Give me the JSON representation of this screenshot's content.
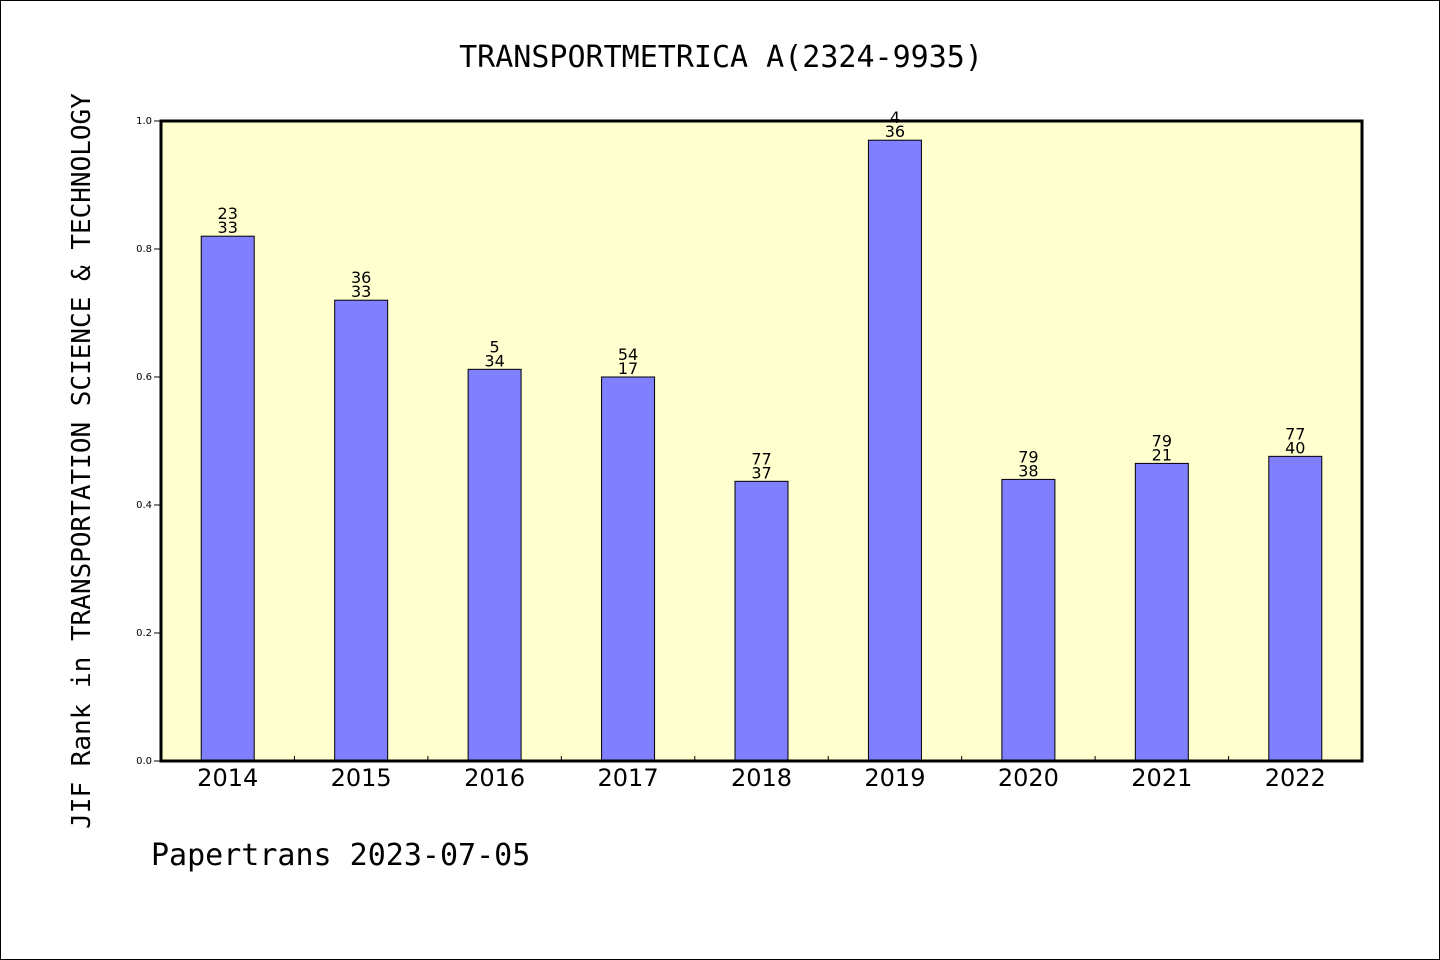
{
  "colors": {
    "plot_background": "#ffffd0",
    "bar_fill": "#8080ff",
    "bar_stroke": "#000000",
    "axis": "#000000"
  },
  "footer": "Papertrans 2023-07-05",
  "chart_data": {
    "type": "bar",
    "title": "TRANSPORTMETRICA A(2324-9935)",
    "xlabel": "",
    "ylabel": "JIF Rank in TRANSPORTATION SCIENCE & TECHNOLOGY",
    "ylim": [
      0,
      1.0
    ],
    "yticks": [
      "0.0",
      "0.2",
      "0.4",
      "0.6",
      "0.8",
      "1.0"
    ],
    "grid": false,
    "categories": [
      "2014",
      "2015",
      "2016",
      "2017",
      "2018",
      "2019",
      "2020",
      "2021",
      "2022"
    ],
    "values": [
      0.82,
      0.72,
      0.612,
      0.6,
      0.437,
      0.97,
      0.44,
      0.465,
      0.476
    ],
    "labels_top": [
      "23",
      "36",
      "5",
      "54",
      "77",
      "4",
      "79",
      "79",
      "77"
    ],
    "labels_bottom": [
      "33",
      "33",
      "34",
      "17",
      "37",
      "36",
      "38",
      "21",
      "40"
    ]
  }
}
